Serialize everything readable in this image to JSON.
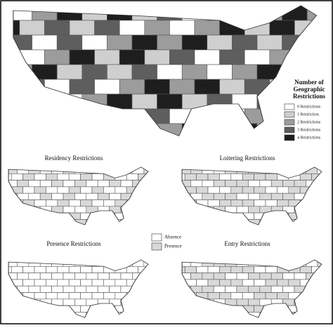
{
  "main_map": {
    "legend": {
      "title_lines": [
        "Number of",
        "Geographic",
        "Restrictions"
      ],
      "items": [
        {
          "label": "0 Restrictions",
          "color": "#ffffff"
        },
        {
          "label": "1 Restriction",
          "color": "#cfcfcf"
        },
        {
          "label": "2 Restrictions",
          "color": "#9c9c9c"
        },
        {
          "label": "3 Restrictions",
          "color": "#5e5e5e"
        },
        {
          "label": "4 Restrictions",
          "color": "#1e1e1e"
        }
      ]
    }
  },
  "small_maps": [
    {
      "title": "Residency Restrictions"
    },
    {
      "title": "Loitering Restrictions"
    },
    {
      "title": "Presence Restrictions"
    },
    {
      "title": "Entry Restrictions"
    }
  ],
  "presence_legend": {
    "items": [
      {
        "label": "Absence",
        "color": "#ffffff"
      },
      {
        "label": "Presence",
        "color": "#d9d9d9"
      }
    ]
  }
}
